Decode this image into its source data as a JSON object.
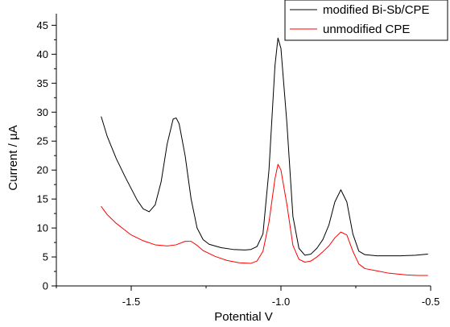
{
  "chart_data": {
    "type": "line",
    "title": "",
    "xlabel": "Potential V",
    "ylabel": "Current / µA",
    "xlim": [
      -1.75,
      -0.5
    ],
    "ylim": [
      0,
      47
    ],
    "grid": false,
    "legend_position": "top-right",
    "x_ticks": [
      -1.5,
      -1.0,
      -0.5
    ],
    "x_tick_labels": [
      "-1.5",
      "-1.0",
      "-0.5"
    ],
    "y_ticks": [
      0,
      5,
      10,
      15,
      20,
      25,
      30,
      35,
      40,
      45
    ],
    "y_tick_labels": [
      "0",
      "5",
      "10",
      "15",
      "20",
      "25",
      "30",
      "35",
      "40",
      "45"
    ],
    "series": [
      {
        "name": "modified Bi-Sb/CPE",
        "color": "#000000",
        "points": [
          [
            -1.6,
            29.2
          ],
          [
            -1.58,
            25.8
          ],
          [
            -1.55,
            22.0
          ],
          [
            -1.52,
            18.8
          ],
          [
            -1.5,
            16.8
          ],
          [
            -1.48,
            14.8
          ],
          [
            -1.46,
            13.3
          ],
          [
            -1.44,
            12.8
          ],
          [
            -1.42,
            14.0
          ],
          [
            -1.4,
            18.0
          ],
          [
            -1.38,
            24.5
          ],
          [
            -1.36,
            28.8
          ],
          [
            -1.35,
            29.0
          ],
          [
            -1.34,
            28.0
          ],
          [
            -1.32,
            22.5
          ],
          [
            -1.3,
            15.0
          ],
          [
            -1.28,
            10.0
          ],
          [
            -1.26,
            8.0
          ],
          [
            -1.24,
            7.2
          ],
          [
            -1.2,
            6.6
          ],
          [
            -1.16,
            6.3
          ],
          [
            -1.12,
            6.2
          ],
          [
            -1.1,
            6.3
          ],
          [
            -1.08,
            6.8
          ],
          [
            -1.06,
            9.0
          ],
          [
            -1.04,
            20.0
          ],
          [
            -1.02,
            38.0
          ],
          [
            -1.01,
            42.8
          ],
          [
            -1.0,
            41.0
          ],
          [
            -0.98,
            28.0
          ],
          [
            -0.96,
            12.0
          ],
          [
            -0.94,
            6.5
          ],
          [
            -0.92,
            5.3
          ],
          [
            -0.9,
            5.5
          ],
          [
            -0.88,
            6.5
          ],
          [
            -0.86,
            8.0
          ],
          [
            -0.84,
            10.5
          ],
          [
            -0.82,
            14.5
          ],
          [
            -0.8,
            16.6
          ],
          [
            -0.78,
            14.5
          ],
          [
            -0.76,
            9.0
          ],
          [
            -0.74,
            6.0
          ],
          [
            -0.72,
            5.4
          ],
          [
            -0.68,
            5.2
          ],
          [
            -0.6,
            5.2
          ],
          [
            -0.55,
            5.3
          ],
          [
            -0.51,
            5.5
          ]
        ]
      },
      {
        "name": "unmodified CPE",
        "color": "#ff0000",
        "points": [
          [
            -1.6,
            13.7
          ],
          [
            -1.58,
            12.3
          ],
          [
            -1.55,
            10.8
          ],
          [
            -1.52,
            9.6
          ],
          [
            -1.5,
            8.8
          ],
          [
            -1.46,
            7.8
          ],
          [
            -1.42,
            7.1
          ],
          [
            -1.38,
            6.9
          ],
          [
            -1.35,
            7.1
          ],
          [
            -1.32,
            7.7
          ],
          [
            -1.3,
            7.7
          ],
          [
            -1.28,
            7.0
          ],
          [
            -1.26,
            6.1
          ],
          [
            -1.22,
            5.1
          ],
          [
            -1.18,
            4.4
          ],
          [
            -1.14,
            4.0
          ],
          [
            -1.1,
            3.9
          ],
          [
            -1.08,
            4.3
          ],
          [
            -1.06,
            6.0
          ],
          [
            -1.04,
            11.0
          ],
          [
            -1.02,
            18.5
          ],
          [
            -1.01,
            21.0
          ],
          [
            -1.0,
            20.0
          ],
          [
            -0.98,
            14.0
          ],
          [
            -0.96,
            7.0
          ],
          [
            -0.94,
            4.6
          ],
          [
            -0.92,
            4.1
          ],
          [
            -0.9,
            4.3
          ],
          [
            -0.88,
            5.0
          ],
          [
            -0.86,
            5.9
          ],
          [
            -0.84,
            6.9
          ],
          [
            -0.82,
            8.3
          ],
          [
            -0.8,
            9.3
          ],
          [
            -0.78,
            8.8
          ],
          [
            -0.76,
            6.0
          ],
          [
            -0.74,
            3.8
          ],
          [
            -0.72,
            3.0
          ],
          [
            -0.68,
            2.6
          ],
          [
            -0.64,
            2.2
          ],
          [
            -0.58,
            1.9
          ],
          [
            -0.54,
            1.8
          ],
          [
            -0.51,
            1.8
          ]
        ]
      }
    ]
  }
}
